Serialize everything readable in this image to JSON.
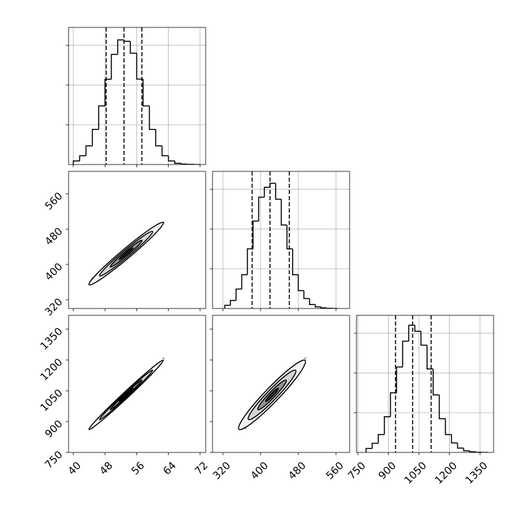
{
  "chart_data": [
    {
      "type": "histogram",
      "color": "#000000",
      "grid": true,
      "bins": [
        40,
        41.6,
        43.2,
        44.8,
        46.4,
        48,
        49.6,
        51.2,
        52.8,
        54.4,
        56,
        57.6,
        59.2,
        60.8,
        62.4,
        64,
        65.6,
        67.2,
        68.8,
        70.4,
        72
      ],
      "counts": [
        18,
        44,
        94,
        177,
        295,
        429,
        554,
        627,
        620,
        560,
        430,
        295,
        177,
        94,
        44,
        18,
        6,
        2,
        1,
        0
      ],
      "quantiles": [
        48.3,
        52.8,
        57.3
      ],
      "xlim": [
        38.8,
        73.4
      ],
      "xticks": [
        40,
        48,
        56,
        64,
        72
      ],
      "ylim": [
        0,
        690
      ],
      "yticks": [
        200,
        400,
        600
      ]
    },
    {
      "type": "scatter",
      "color": "#555555",
      "x": [
        44.8,
        46.3,
        47.8,
        48.6,
        49.3,
        49.8,
        50.4,
        51,
        51.6,
        52.1,
        52.5,
        52.8,
        53.2,
        53.6,
        54.1,
        54.7,
        55.3,
        55.9,
        56.6,
        57.4,
        58.3,
        59.6,
        61.3,
        62.8
      ],
      "y": [
        368,
        365,
        388,
        384,
        403,
        395,
        393,
        414,
        407,
        427,
        412,
        423,
        414,
        431,
        428,
        444,
        431,
        447,
        437,
        460,
        463,
        465,
        490,
        495
      ],
      "xlim": [
        38.8,
        73.4
      ],
      "xticks": [
        40,
        48,
        56,
        64,
        72
      ],
      "ylim": [
        300,
        611
      ],
      "yticks": [
        320,
        400,
        480,
        560
      ]
    },
    {
      "type": "histogram",
      "color": "#000000",
      "grid": true,
      "bins": [
        324,
        336,
        348,
        360,
        372,
        384,
        396,
        408,
        420,
        432,
        444,
        456,
        468,
        480,
        492,
        504,
        516,
        528,
        540,
        552,
        564
      ],
      "counts": [
        16,
        40,
        98,
        170,
        300,
        440,
        560,
        610,
        630,
        550,
        420,
        300,
        170,
        90,
        50,
        20,
        8,
        3,
        1,
        0
      ],
      "quantiles": [
        382,
        420,
        461
      ],
      "xlim": [
        298,
        589
      ],
      "xticks": [
        320,
        400,
        480,
        560
      ],
      "ylim": [
        0,
        690
      ],
      "yticks": [
        200,
        400,
        600
      ]
    },
    {
      "type": "scatter",
      "color": "#555555",
      "x": [
        44.8,
        46.3,
        47.8,
        48.6,
        49.3,
        49.8,
        50.4,
        51,
        51.6,
        52.1,
        52.5,
        52.8,
        53.2,
        53.6,
        54.1,
        54.7,
        55.3,
        55.9,
        56.6,
        57.4,
        58.3,
        59.6,
        61.3,
        62.8
      ],
      "y": [
        868,
        918,
        925,
        954,
        945,
        972,
        988,
        980,
        1014,
        1004,
        1022,
        1008,
        1037,
        1029,
        1046,
        1040,
        1073,
        1073,
        1100,
        1093,
        1124,
        1126,
        1175,
        1208
      ],
      "xlim": [
        38.8,
        73.4
      ],
      "xticks": [
        40,
        48,
        56,
        64,
        72
      ],
      "ylim": [
        750,
        1417
      ],
      "yticks": [
        750,
        900,
        1050,
        1200,
        1350
      ]
    },
    {
      "type": "scatter",
      "color": "#555555",
      "x": [
        368,
        365,
        388,
        384,
        403,
        395,
        393,
        414,
        407,
        427,
        412,
        423,
        414,
        431,
        428,
        444,
        431,
        447,
        437,
        460,
        463,
        465,
        490,
        495
      ],
      "y": [
        868,
        918,
        925,
        954,
        945,
        972,
        988,
        980,
        1014,
        1004,
        1022,
        1008,
        1037,
        1029,
        1046,
        1040,
        1073,
        1073,
        1100,
        1093,
        1124,
        1126,
        1175,
        1208
      ],
      "xlim": [
        298,
        589
      ],
      "xticks": [
        320,
        400,
        480,
        560
      ],
      "ylim": [
        750,
        1417
      ],
      "yticks": [
        750,
        900,
        1050,
        1200,
        1350
      ]
    },
    {
      "type": "histogram",
      "color": "#000000",
      "grid": true,
      "bins": [
        790,
        820,
        850,
        880,
        910,
        940,
        970,
        1000,
        1030,
        1060,
        1090,
        1120,
        1150,
        1180,
        1210,
        1240,
        1270,
        1300,
        1330,
        1360,
        1390
      ],
      "counts": [
        20,
        46,
        90,
        180,
        300,
        430,
        560,
        640,
        610,
        540,
        420,
        290,
        170,
        90,
        48,
        22,
        8,
        3,
        1,
        0
      ],
      "quantiles": [
        935,
        1019,
        1110
      ],
      "xlim": [
        743,
        1417
      ],
      "xticks": [
        750,
        900,
        1050,
        1200,
        1350
      ],
      "ylim": [
        0,
        690
      ],
      "yticks": [
        200,
        400,
        600
      ]
    }
  ]
}
